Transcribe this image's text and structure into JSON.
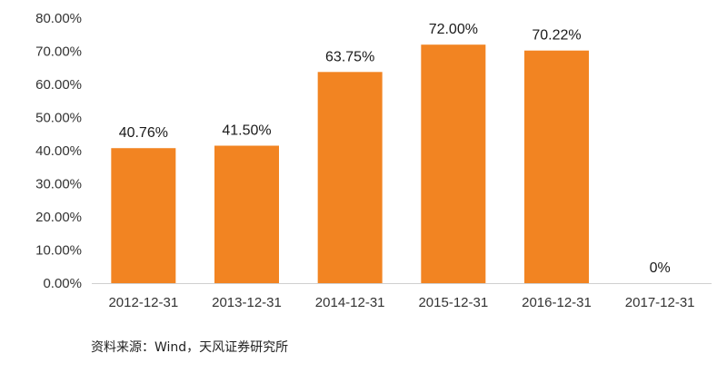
{
  "chart_data": {
    "type": "bar",
    "categories": [
      "2012-12-31",
      "2013-12-31",
      "2014-12-31",
      "2015-12-31",
      "2016-12-31",
      "2017-12-31"
    ],
    "values": [
      40.76,
      41.5,
      63.75,
      72.0,
      70.22,
      0
    ],
    "data_labels": [
      "40.76%",
      "41.50%",
      "63.75%",
      "72.00%",
      "70.22%",
      "0%"
    ],
    "ylim": [
      0,
      80
    ],
    "y_ticks": [
      0,
      10,
      20,
      30,
      40,
      50,
      60,
      70,
      80
    ],
    "y_tick_labels": [
      "0.00%",
      "10.00%",
      "20.00%",
      "30.00%",
      "40.00%",
      "50.00%",
      "60.00%",
      "70.00%",
      "80.00%"
    ],
    "title": "",
    "xlabel": "",
    "ylabel": "",
    "grid": false,
    "legend": "none",
    "bar_color": "#f28422"
  },
  "source_note": "资料来源：Wind，天风证券研究所"
}
